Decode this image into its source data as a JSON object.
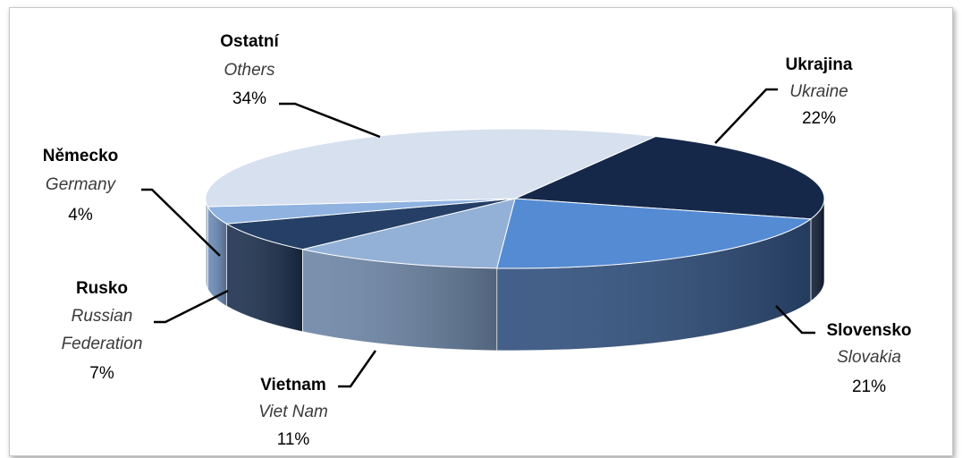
{
  "chart_data": {
    "type": "pie",
    "style": "3d-exploded-ellipse",
    "title": "",
    "slices": [
      {
        "label_cz": "Ukrajina",
        "label_en": "Ukraine",
        "value": 22,
        "value_text": "22%",
        "color": "#16284a",
        "side": "#0f1c34"
      },
      {
        "label_cz": "Slovensko",
        "label_en": "Slovakia",
        "value": 21,
        "value_text": "21%",
        "color": "#548bd2",
        "side": "#2f4f7d"
      },
      {
        "label_cz": "Vietnam",
        "label_en": "Viet Nam",
        "value": 11,
        "value_text": "11%",
        "color": "#93b0d6",
        "side": "#6c85a6"
      },
      {
        "label_cz": "Rusko",
        "label_en": "Russian Federation",
        "value": 7,
        "value_text": "7%",
        "color": "#253f66",
        "side": "#1b2f4d"
      },
      {
        "label_cz": "Německo",
        "label_en": "Germany",
        "value": 4,
        "value_text": "4%",
        "color": "#8fb2e1",
        "side": "#6b8bb8"
      },
      {
        "label_cz": "Ostatní",
        "label_en": "Others",
        "value": 34,
        "value_text": "34%",
        "color": "#d6e0ee",
        "side": "#b0bccd"
      }
    ]
  }
}
